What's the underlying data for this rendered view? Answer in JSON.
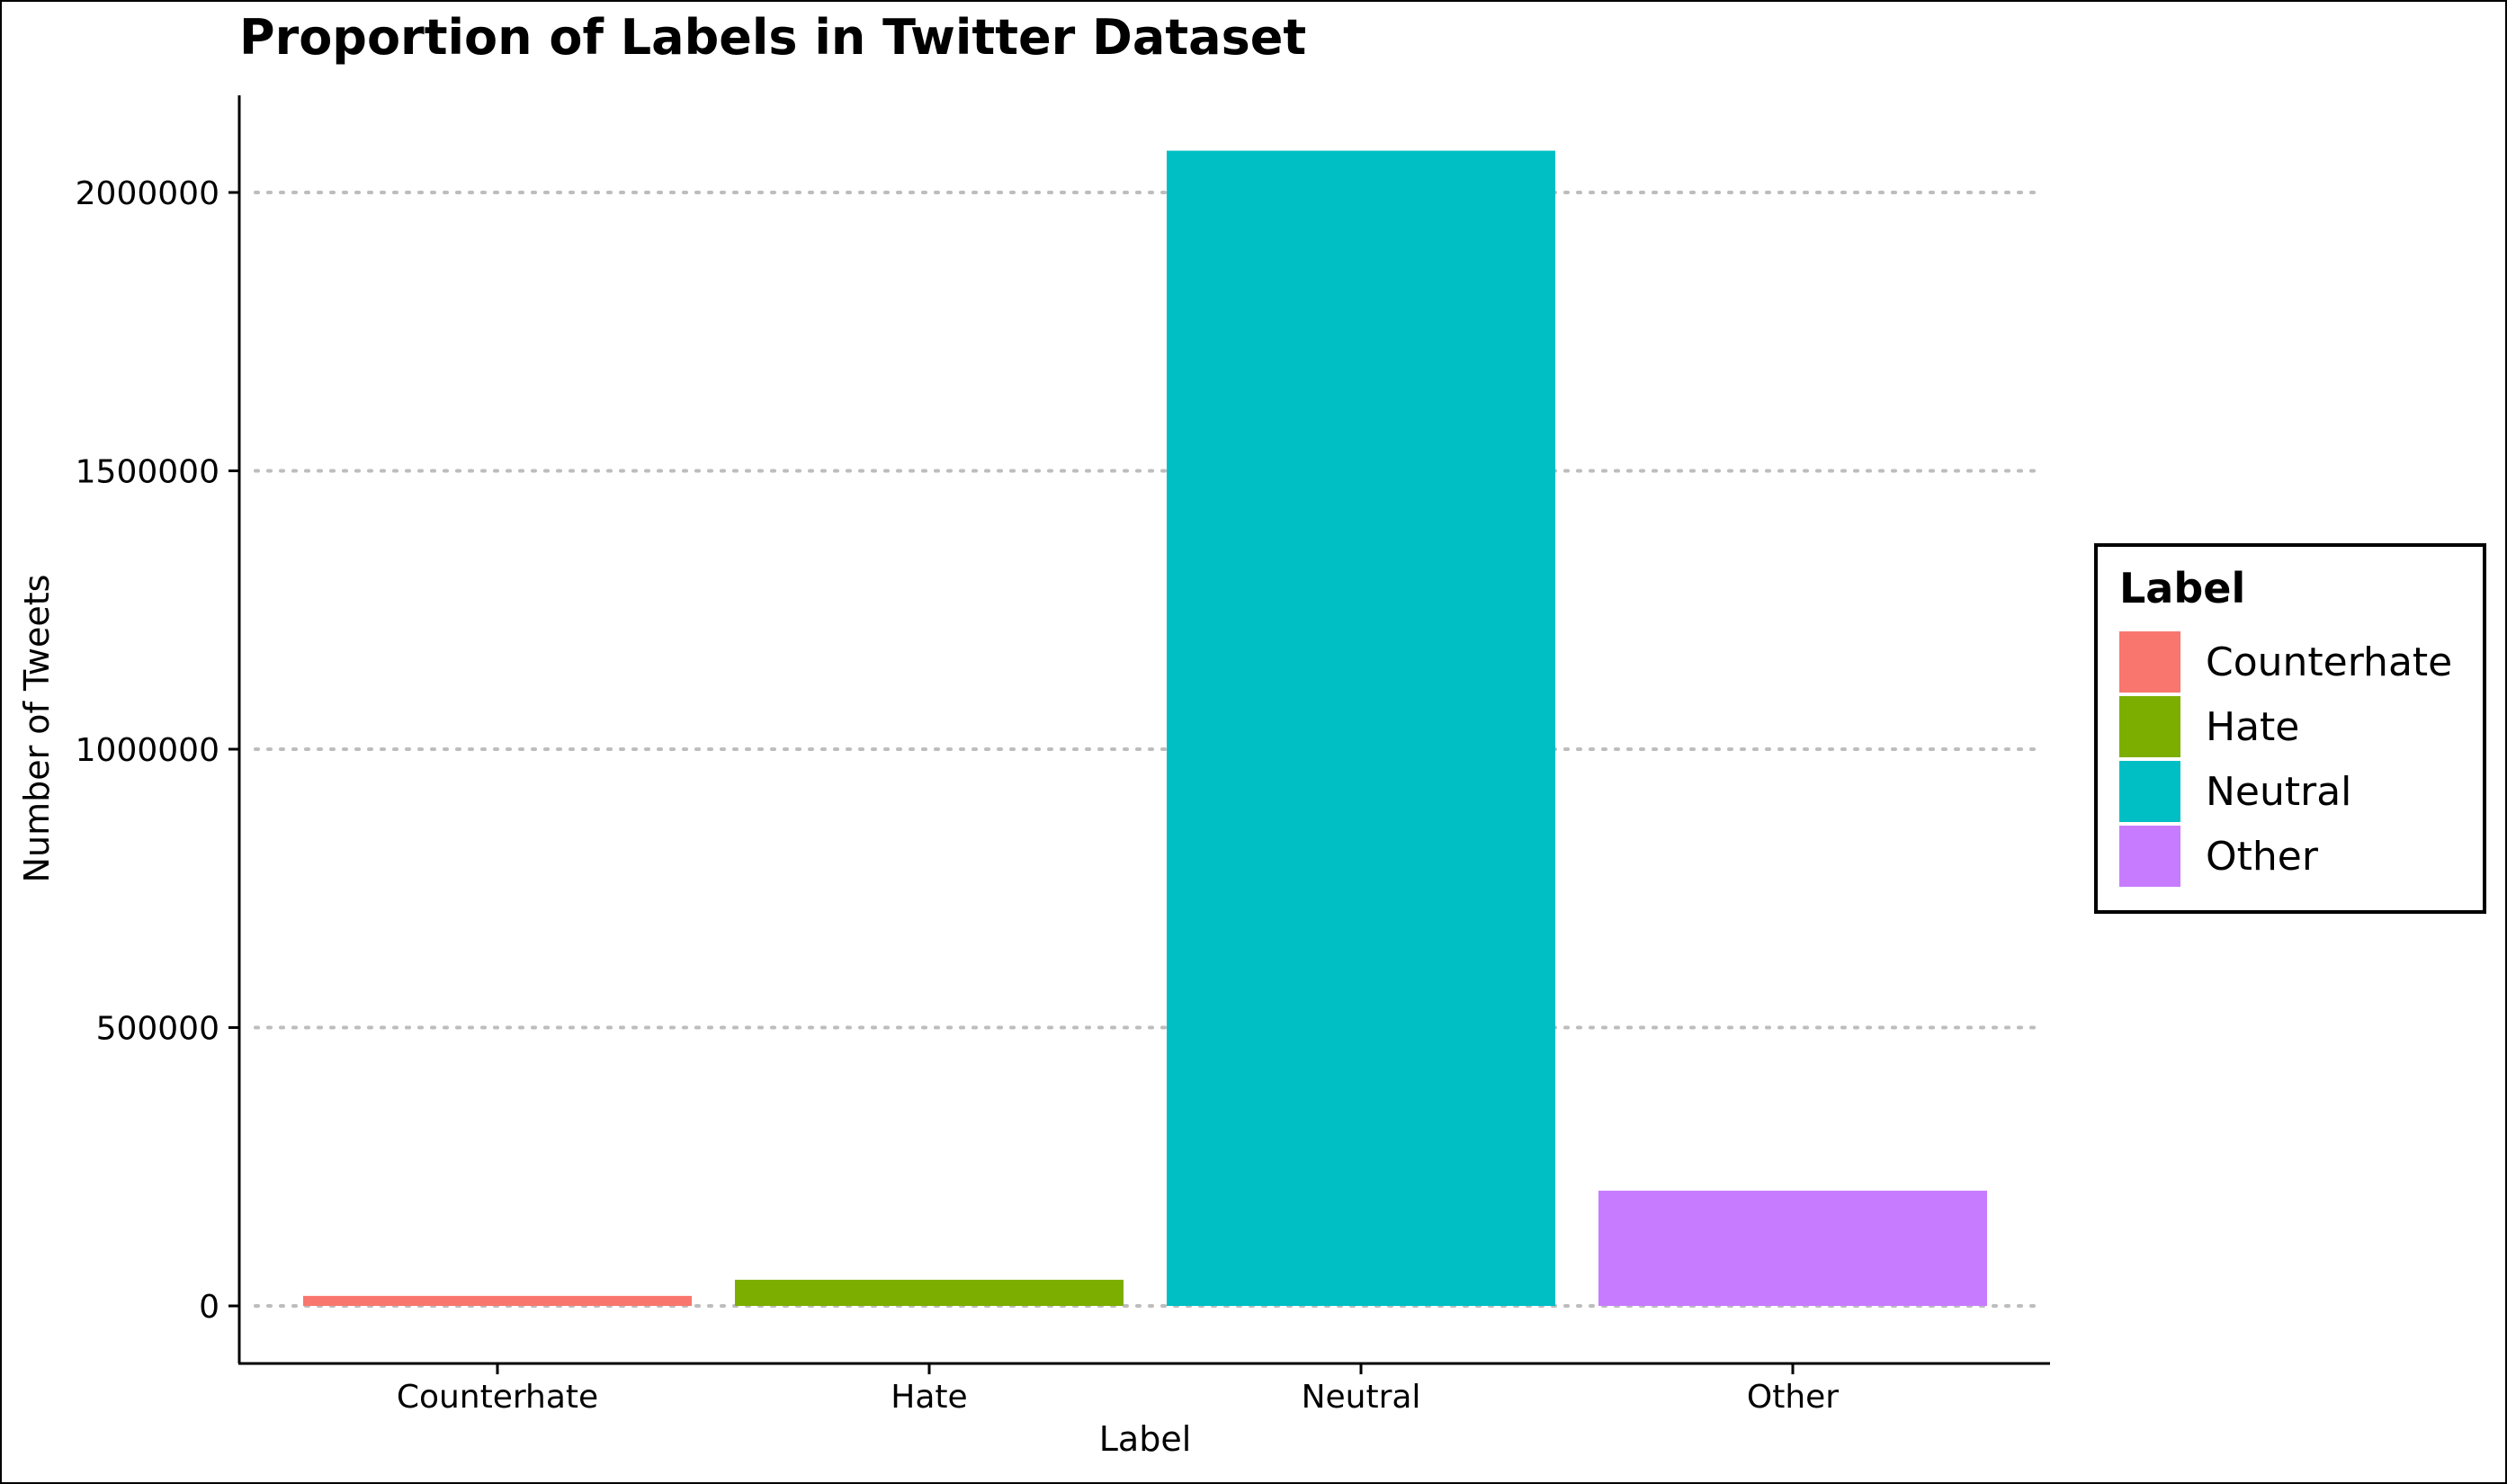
{
  "chart_data": {
    "type": "bar",
    "title": "Proportion of Labels in Twitter Dataset",
    "xlabel": "Label",
    "ylabel": "Number of Tweets",
    "categories": [
      "Counterhate",
      "Hate",
      "Neutral",
      "Other"
    ],
    "values": [
      18000,
      47000,
      2075000,
      207000
    ],
    "colors": [
      "#F8766D",
      "#7CAE00",
      "#00BFC4",
      "#C77CFF"
    ],
    "ylim": [
      -100000,
      2175000
    ],
    "yticks": [
      0,
      500000,
      1000000,
      1500000,
      2000000
    ],
    "ytick_labels": [
      "0",
      "500000",
      "1000000",
      "1500000",
      "2000000"
    ],
    "grid": "horizontal dotted",
    "legend": {
      "title": "Label",
      "placement": "right",
      "entries": [
        "Counterhate",
        "Hate",
        "Neutral",
        "Other"
      ]
    }
  }
}
